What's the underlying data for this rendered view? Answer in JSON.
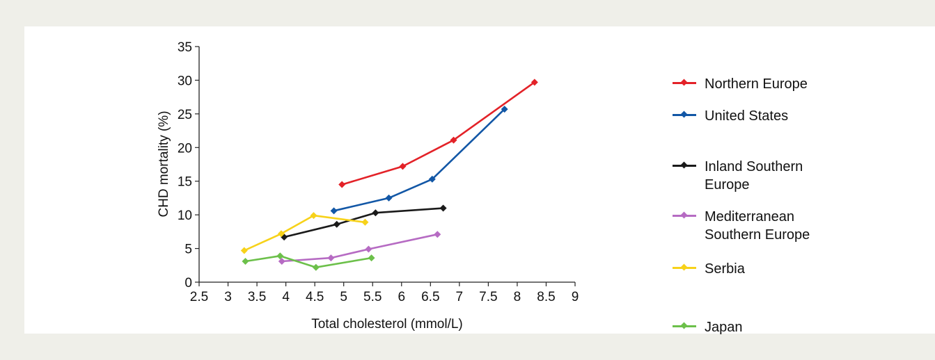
{
  "chart_data": {
    "type": "line",
    "xlabel": "Total cholesterol (mmol/L)",
    "ylabel": "CHD mortality (%)",
    "xlim": [
      2.5,
      9
    ],
    "ylim": [
      0,
      35
    ],
    "x_ticks": [
      "2.5",
      "3",
      "3.5",
      "4",
      "4.5",
      "5",
      "5.5",
      "6",
      "6.5",
      "7",
      "7.5",
      "8",
      "8.5",
      "9"
    ],
    "y_ticks": [
      "0",
      "5",
      "10",
      "15",
      "20",
      "25",
      "30",
      "35"
    ],
    "grid": false,
    "legend_position": "right",
    "series": [
      {
        "name": "Northern Europe",
        "color": "#e32228",
        "points": [
          [
            4.97,
            14.5
          ],
          [
            6.02,
            17.2
          ],
          [
            6.9,
            21.1
          ],
          [
            8.3,
            29.7
          ]
        ]
      },
      {
        "name": "United States",
        "color": "#1257a6",
        "points": [
          [
            4.83,
            10.6
          ],
          [
            5.78,
            12.5
          ],
          [
            6.53,
            15.3
          ],
          [
            7.78,
            25.7
          ]
        ]
      },
      {
        "name": "Inland Southern Europe",
        "color": "#1a1a1a",
        "points": [
          [
            3.97,
            6.7
          ],
          [
            4.88,
            8.6
          ],
          [
            5.55,
            10.3
          ],
          [
            6.72,
            11.0
          ]
        ]
      },
      {
        "name": "Mediterranean Southern Europe",
        "color": "#b66bc3",
        "points": [
          [
            3.93,
            3.1
          ],
          [
            4.78,
            3.6
          ],
          [
            5.43,
            4.9
          ],
          [
            6.62,
            7.1
          ]
        ]
      },
      {
        "name": "Serbia",
        "color": "#f7d21a",
        "points": [
          [
            3.28,
            4.7
          ],
          [
            3.92,
            7.2
          ],
          [
            4.48,
            9.9
          ],
          [
            5.37,
            8.9
          ]
        ]
      },
      {
        "name": "Japan",
        "color": "#6cc04a",
        "points": [
          [
            3.3,
            3.1
          ],
          [
            3.9,
            3.9
          ],
          [
            4.52,
            2.2
          ],
          [
            5.48,
            3.6
          ]
        ]
      }
    ]
  }
}
